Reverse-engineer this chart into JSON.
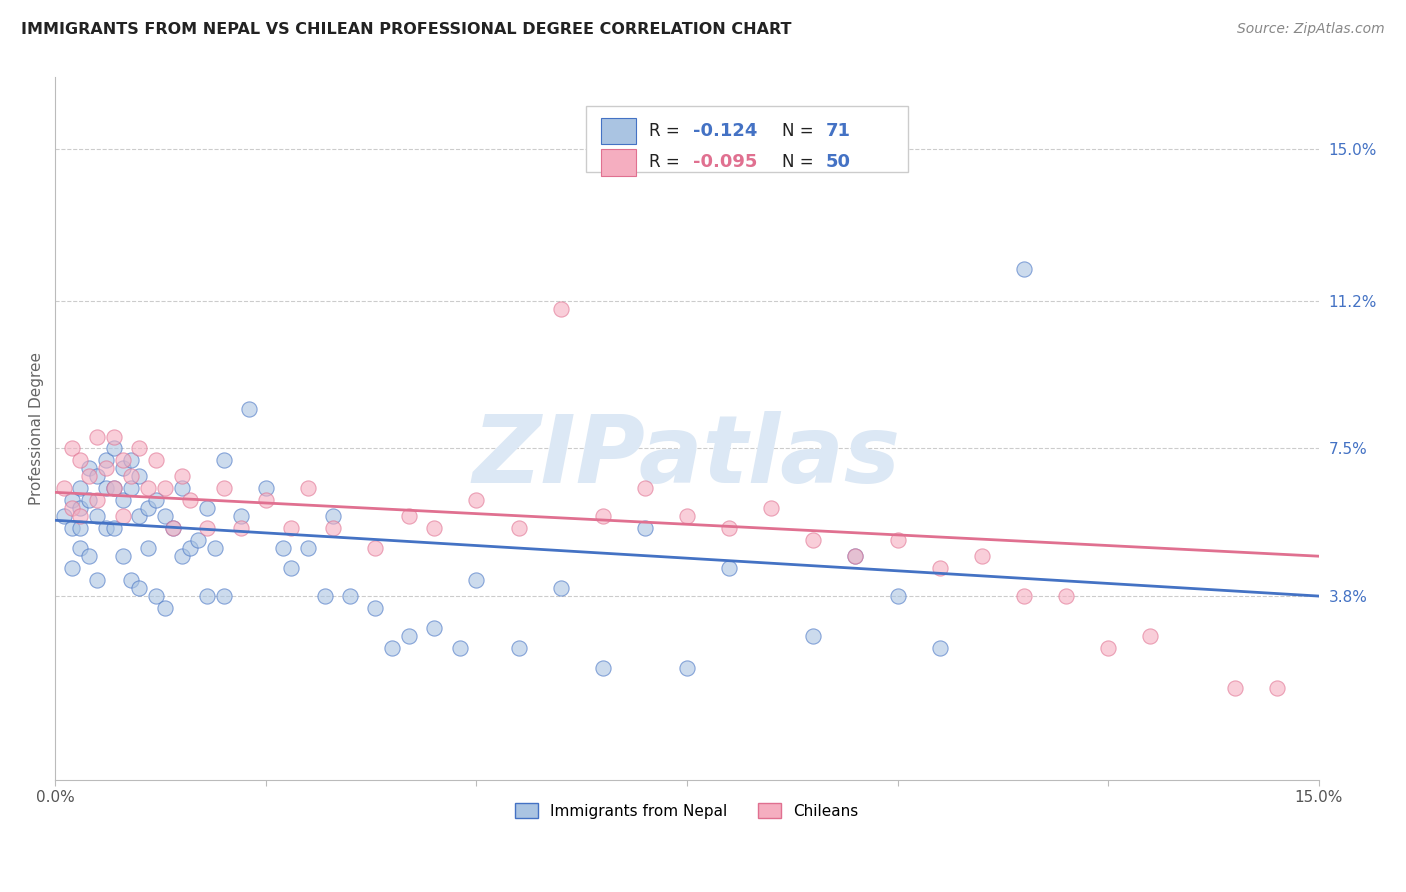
{
  "title": "IMMIGRANTS FROM NEPAL VS CHILEAN PROFESSIONAL DEGREE CORRELATION CHART",
  "source": "Source: ZipAtlas.com",
  "ylabel": "Professional Degree",
  "right_yticks": [
    "15.0%",
    "11.2%",
    "7.5%",
    "3.8%"
  ],
  "right_ytick_vals": [
    0.15,
    0.112,
    0.075,
    0.038
  ],
  "xmin": 0.0,
  "xmax": 0.15,
  "ymin": -0.008,
  "ymax": 0.168,
  "nepal_color": "#aac4e2",
  "chile_color": "#f5aec0",
  "nepal_line_color": "#4472c4",
  "chile_line_color": "#e07090",
  "watermark": "ZIPatlas",
  "watermark_color": "#dce8f5",
  "nepal_line_start": 0.057,
  "nepal_line_end": 0.038,
  "chile_line_start": 0.064,
  "chile_line_end": 0.048,
  "nepal_R": "-0.124",
  "nepal_N": "71",
  "chile_R": "-0.095",
  "chile_N": "50",
  "nepal_x": [
    0.001,
    0.002,
    0.002,
    0.002,
    0.003,
    0.003,
    0.003,
    0.003,
    0.004,
    0.004,
    0.004,
    0.005,
    0.005,
    0.005,
    0.006,
    0.006,
    0.006,
    0.007,
    0.007,
    0.007,
    0.008,
    0.008,
    0.008,
    0.009,
    0.009,
    0.009,
    0.01,
    0.01,
    0.01,
    0.011,
    0.011,
    0.012,
    0.012,
    0.013,
    0.013,
    0.014,
    0.015,
    0.015,
    0.016,
    0.017,
    0.018,
    0.018,
    0.019,
    0.02,
    0.02,
    0.022,
    0.023,
    0.025,
    0.027,
    0.028,
    0.03,
    0.032,
    0.033,
    0.035,
    0.038,
    0.04,
    0.042,
    0.045,
    0.048,
    0.05,
    0.055,
    0.06,
    0.065,
    0.07,
    0.075,
    0.08,
    0.09,
    0.095,
    0.1,
    0.105,
    0.115
  ],
  "nepal_y": [
    0.058,
    0.062,
    0.055,
    0.045,
    0.065,
    0.06,
    0.055,
    0.05,
    0.07,
    0.062,
    0.048,
    0.068,
    0.058,
    0.042,
    0.072,
    0.065,
    0.055,
    0.075,
    0.065,
    0.055,
    0.07,
    0.062,
    0.048,
    0.072,
    0.065,
    0.042,
    0.068,
    0.058,
    0.04,
    0.06,
    0.05,
    0.062,
    0.038,
    0.058,
    0.035,
    0.055,
    0.065,
    0.048,
    0.05,
    0.052,
    0.06,
    0.038,
    0.05,
    0.072,
    0.038,
    0.058,
    0.085,
    0.065,
    0.05,
    0.045,
    0.05,
    0.038,
    0.058,
    0.038,
    0.035,
    0.025,
    0.028,
    0.03,
    0.025,
    0.042,
    0.025,
    0.04,
    0.02,
    0.055,
    0.02,
    0.045,
    0.028,
    0.048,
    0.038,
    0.025,
    0.12
  ],
  "chile_x": [
    0.001,
    0.002,
    0.002,
    0.003,
    0.003,
    0.004,
    0.005,
    0.005,
    0.006,
    0.007,
    0.007,
    0.008,
    0.008,
    0.009,
    0.01,
    0.011,
    0.012,
    0.013,
    0.014,
    0.015,
    0.016,
    0.018,
    0.02,
    0.022,
    0.025,
    0.028,
    0.03,
    0.033,
    0.038,
    0.042,
    0.045,
    0.05,
    0.055,
    0.06,
    0.065,
    0.07,
    0.075,
    0.08,
    0.085,
    0.09,
    0.095,
    0.1,
    0.105,
    0.11,
    0.115,
    0.12,
    0.125,
    0.13,
    0.14,
    0.145
  ],
  "chile_y": [
    0.065,
    0.075,
    0.06,
    0.072,
    0.058,
    0.068,
    0.078,
    0.062,
    0.07,
    0.078,
    0.065,
    0.072,
    0.058,
    0.068,
    0.075,
    0.065,
    0.072,
    0.065,
    0.055,
    0.068,
    0.062,
    0.055,
    0.065,
    0.055,
    0.062,
    0.055,
    0.065,
    0.055,
    0.05,
    0.058,
    0.055,
    0.062,
    0.055,
    0.11,
    0.058,
    0.065,
    0.058,
    0.055,
    0.06,
    0.052,
    0.048,
    0.052,
    0.045,
    0.048,
    0.038,
    0.038,
    0.025,
    0.028,
    0.015,
    0.015
  ]
}
